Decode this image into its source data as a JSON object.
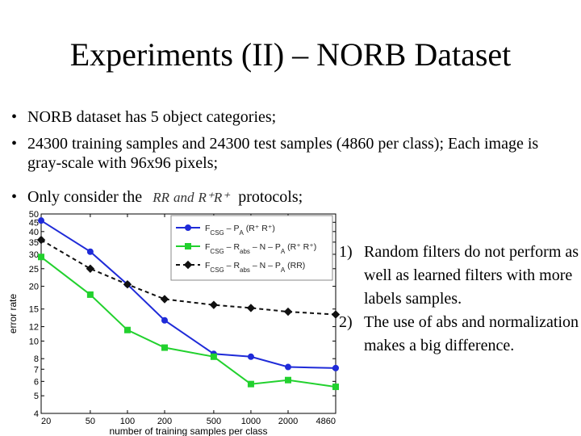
{
  "slide": {
    "title": "Experiments (II) – NORB Dataset",
    "bullet_char": "•",
    "bullets": [
      "NORB dataset has 5 object categories;",
      "24300 training samples and 24300 test samples (4860 per class); Each image is gray-scale with 96x96 pixels;"
    ],
    "bullet3": {
      "pre": "Only consider the",
      "math_a": "RR",
      "math_and": "and",
      "math_b": "R⁺R⁺",
      "post": "protocols;"
    },
    "notes": [
      {
        "num": "1)",
        "text": "Random filters do not perform as well as learned filters with more labels samples."
      },
      {
        "num": "2)",
        "text": "The use of abs and normalization makes a big difference."
      }
    ]
  },
  "chart_data": {
    "type": "line",
    "x": [
      20,
      50,
      100,
      200,
      500,
      1000,
      2000,
      4860
    ],
    "x_tick_labels": [
      "20",
      "50",
      "100",
      "200",
      "500",
      "1000",
      "2000",
      "4860"
    ],
    "xscale": "log",
    "yscale": "log",
    "ylim": [
      4,
      50
    ],
    "y_ticks": [
      4,
      5,
      6,
      7,
      8,
      10,
      12,
      15,
      20,
      25,
      30,
      35,
      40,
      45,
      50
    ],
    "y_tick_labels": [
      "4",
      "5",
      "6",
      "7",
      "8",
      "10",
      "12",
      "15",
      "20",
      "25",
      "30",
      "35",
      "40",
      "45",
      "50"
    ],
    "xlabel": "number of training samples per class",
    "ylabel": "error rate",
    "legend_position": "top-right",
    "series": [
      {
        "name": "F_CSG − P_A (R⁺ R⁺)",
        "legend": {
          "main": "F",
          "sub": "CSG",
          "rest": " – P",
          "sub2": "A",
          "tail": " (R⁺ R⁺)"
        },
        "color": "#1f2bd8",
        "marker": "circle",
        "dash": "solid",
        "values": [
          46,
          31,
          20.5,
          13,
          8.5,
          8.2,
          7.2,
          7.1
        ]
      },
      {
        "name": "F_CSG − R_abs − N − P_A (R⁺ R⁺)",
        "legend": {
          "main": "F",
          "sub": "CSG",
          "rest": " – R",
          "sub2": "abs",
          "tail": " – N – P",
          "sub3": "A",
          "tail2": " (R⁺ R⁺)"
        },
        "color": "#22d12e",
        "marker": "square",
        "dash": "solid",
        "values": [
          29,
          18,
          11.5,
          9.2,
          8.2,
          5.8,
          6.1,
          5.6
        ]
      },
      {
        "name": "F_CSG − R_abs − N − P_A (RR)",
        "legend": {
          "main": "F",
          "sub": "CSG",
          "rest": " – R",
          "sub2": "abs",
          "tail": " – N – P",
          "sub3": "A",
          "tail2": " (RR)"
        },
        "color": "#111111",
        "marker": "diamond",
        "dash": "dashed",
        "values": [
          36,
          25,
          20.5,
          17,
          15.8,
          15.2,
          14.5,
          14
        ]
      }
    ]
  }
}
